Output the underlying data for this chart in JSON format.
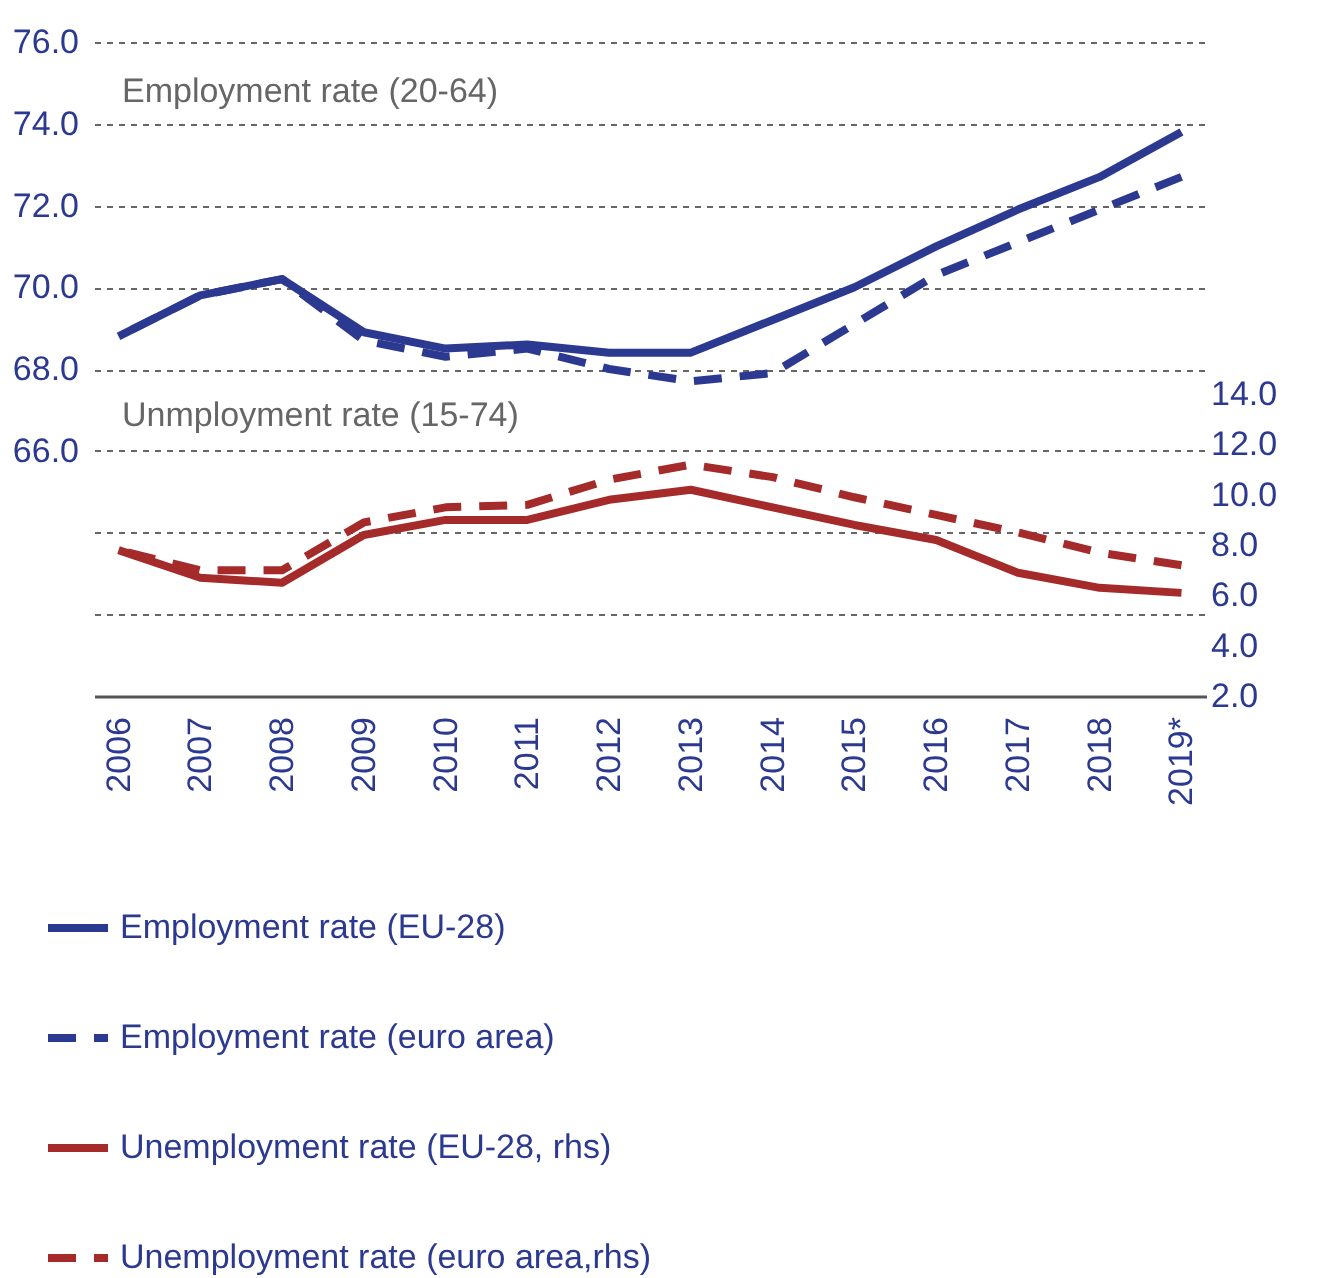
{
  "chart_data": {
    "type": "line",
    "categories": [
      "2006",
      "2007",
      "2008",
      "2009",
      "2010",
      "2011",
      "2012",
      "2013",
      "2014",
      "2015",
      "2016",
      "2017",
      "2018",
      "2019*"
    ],
    "series": [
      {
        "name": "Employment rate (EU-28)",
        "color": "#2b3990",
        "line_style": "solid",
        "values": [
          68.8,
          69.8,
          70.2,
          68.9,
          68.5,
          68.6,
          68.4,
          68.4,
          69.2,
          70.0,
          71.0,
          71.9,
          72.7,
          73.8
        ]
      },
      {
        "name": "Employment rate (euro area)",
        "color": "#2b3990",
        "line_style": "dashed",
        "values": [
          68.8,
          69.8,
          70.2,
          68.7,
          68.3,
          68.5,
          68.0,
          67.7,
          67.9,
          69.1,
          70.3,
          71.1,
          71.9,
          72.7
        ]
      },
      {
        "name": "Unemployment rate (EU-28, rhs)",
        "color": "#a52a2a",
        "line_style": "solid",
        "axis": "y2",
        "values": [
          7.8,
          6.7,
          6.5,
          8.4,
          9.0,
          9.0,
          9.8,
          10.2,
          9.5,
          8.8,
          8.2,
          6.9,
          6.3,
          6.1
        ]
      },
      {
        "name": "Unemployment rate (euro area,rhs)",
        "color": "#a52a2a",
        "line_style": "dashed",
        "axis": "y2",
        "values": [
          7.8,
          7.0,
          7.0,
          8.9,
          9.5,
          9.6,
          10.6,
          11.2,
          10.7,
          9.9,
          9.2,
          8.5,
          7.7,
          7.2
        ]
      }
    ],
    "ylim": [
      60,
      76
    ],
    "yticks": [
      {
        "value": 62,
        "label": null
      },
      {
        "value": 64,
        "label": null
      },
      {
        "value": 66,
        "label": "66.0"
      },
      {
        "value": 68,
        "label": "68.0"
      },
      {
        "value": 70,
        "label": "70.0"
      },
      {
        "value": 72,
        "label": "72.0"
      },
      {
        "value": 74,
        "label": "74.0"
      },
      {
        "value": 76,
        "label": "76.0"
      }
    ],
    "y2lim": [
      2,
      28
    ],
    "y2ticks": [
      {
        "value": 2,
        "label": "2.0"
      },
      {
        "value": 4,
        "label": "4.0"
      },
      {
        "value": 6,
        "label": "6.0"
      },
      {
        "value": 8,
        "label": "8.0"
      },
      {
        "value": 10,
        "label": "10.0"
      },
      {
        "value": 12,
        "label": "12.0"
      },
      {
        "value": 14,
        "label": "14.0"
      }
    ],
    "grid": "y",
    "legend": "bottom",
    "annotations": [
      "Employment rate (20-64)",
      "Unmployment rate (15-74)"
    ]
  }
}
